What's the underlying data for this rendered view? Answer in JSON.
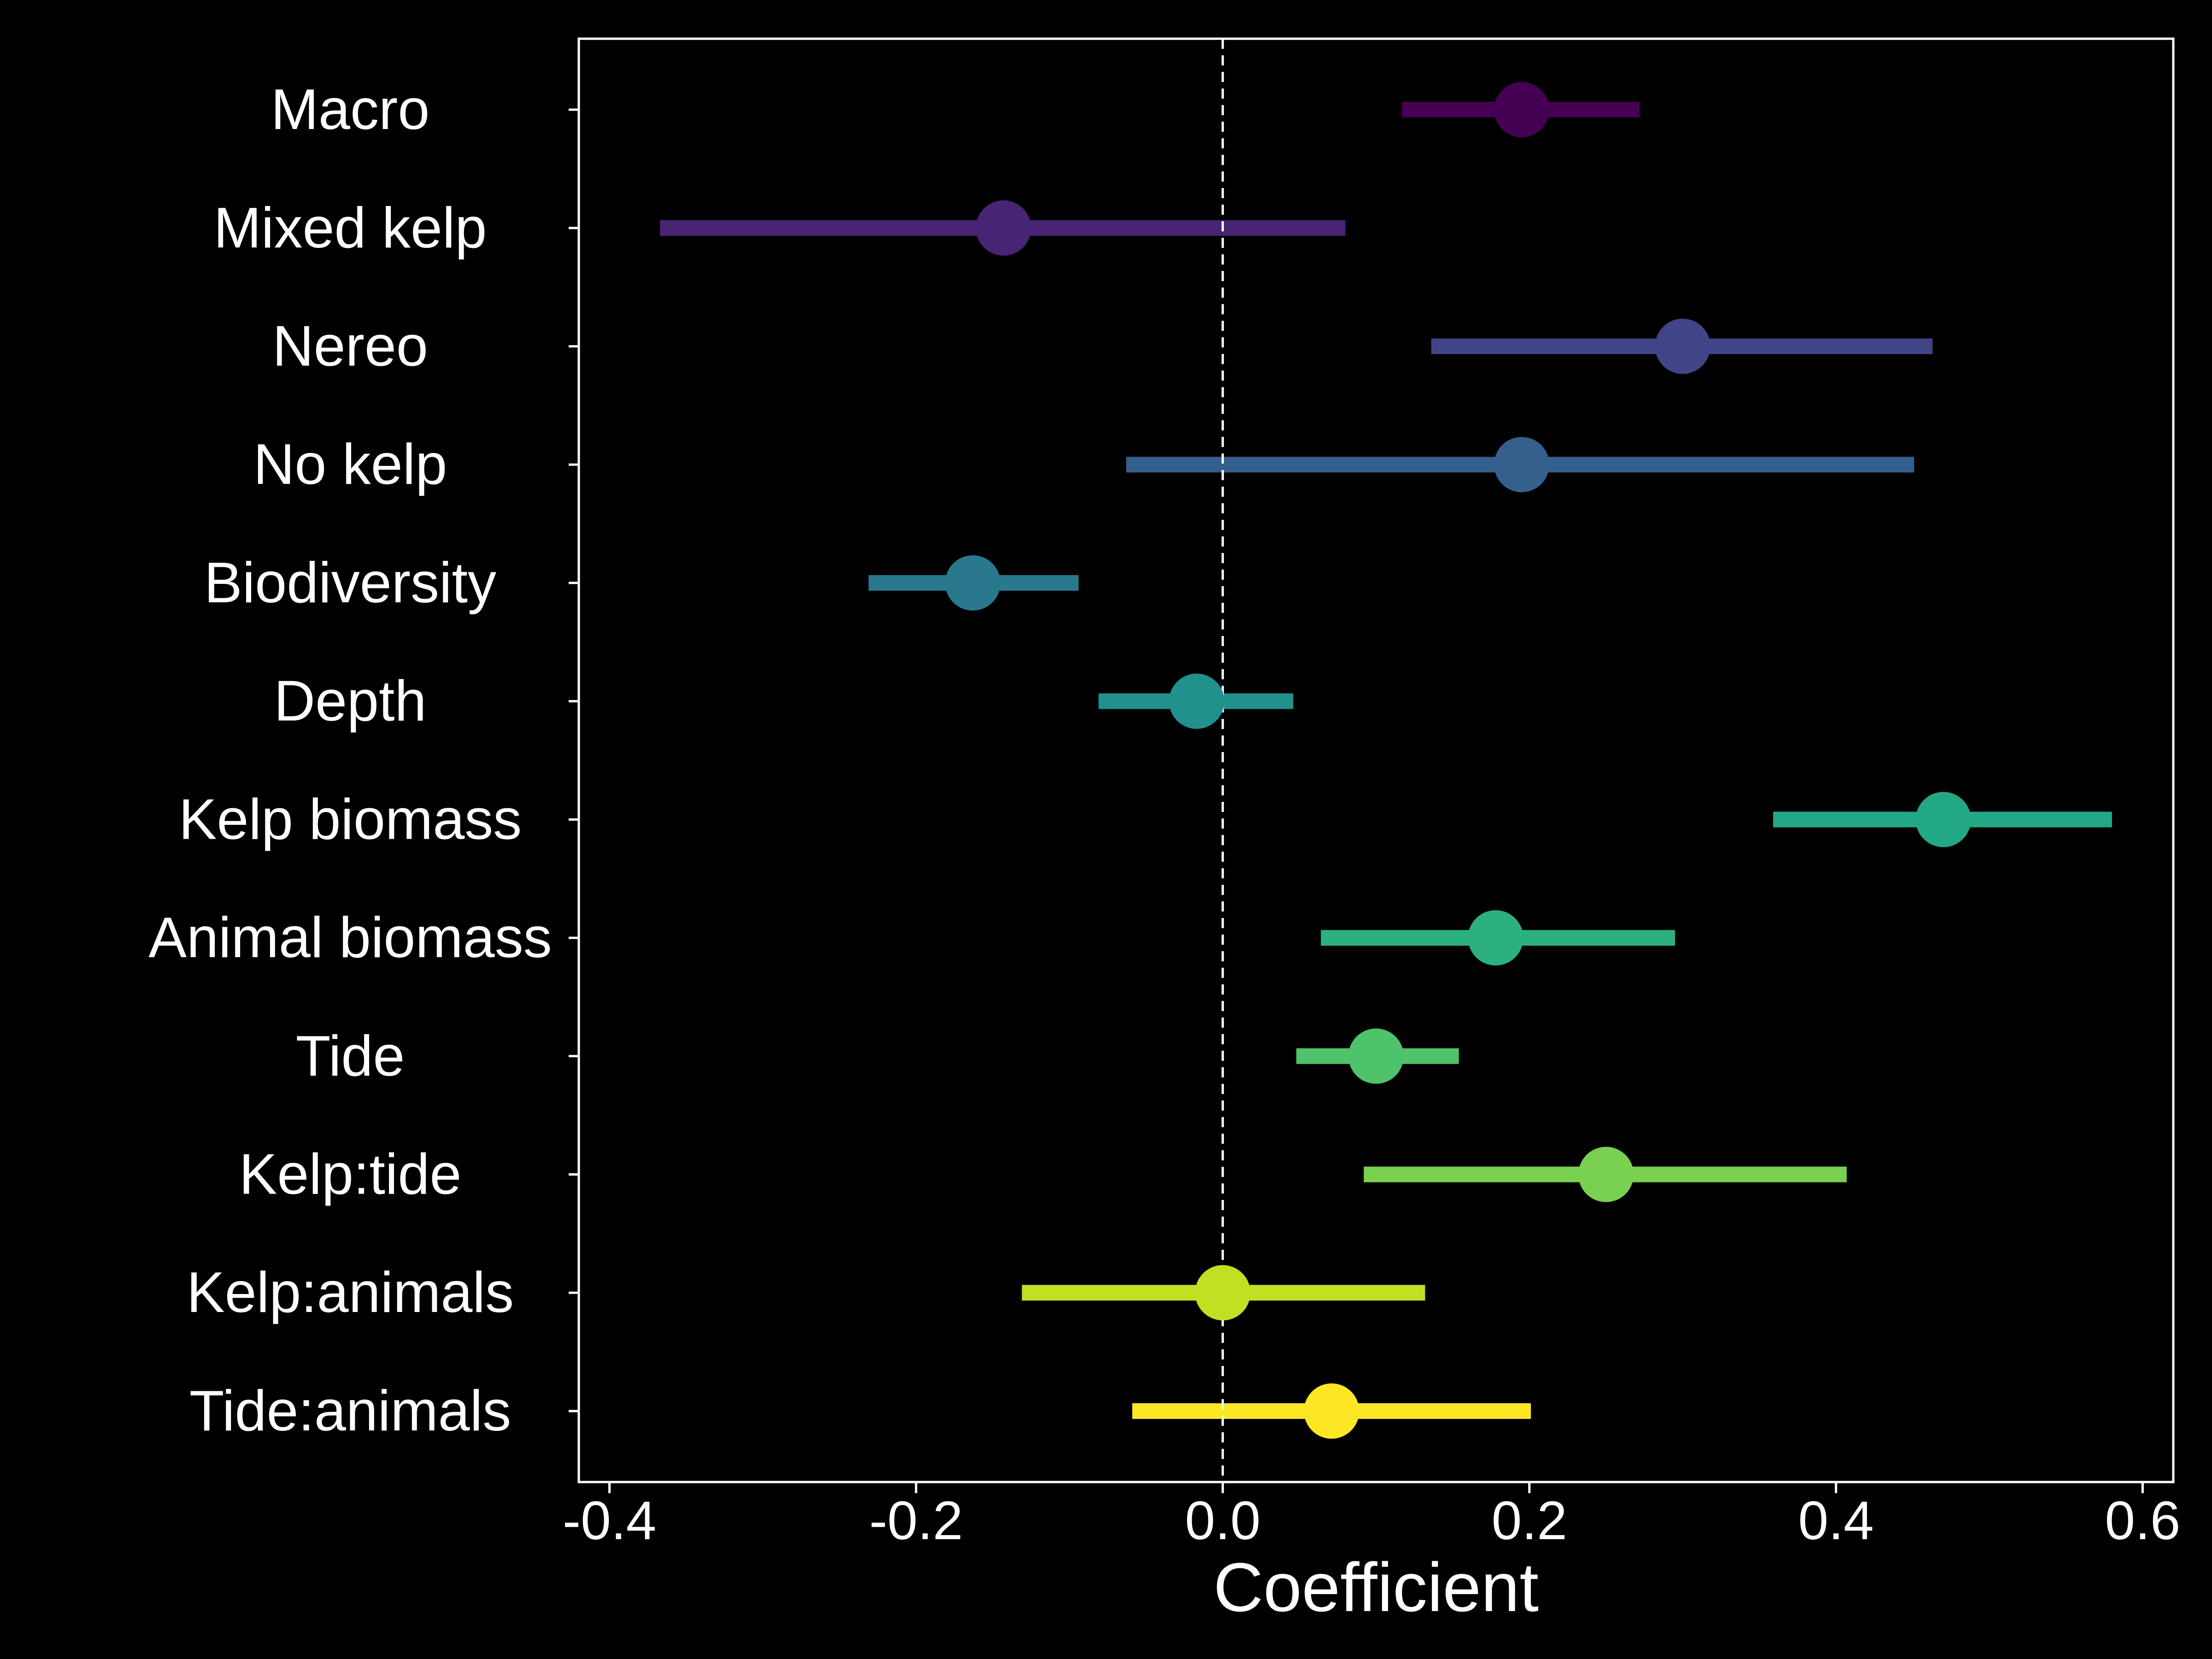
{
  "chart_data": {
    "type": "scatter",
    "subtype": "coefficient-plot",
    "xlabel": "Coefficient",
    "ylabel": "",
    "xlim": [
      -0.42,
      0.62
    ],
    "xticks": [
      -0.4,
      -0.2,
      0.0,
      0.2,
      0.4,
      0.6
    ],
    "xtick_labels": [
      "-0.4",
      "-0.2",
      "0.0",
      "0.2",
      "0.4",
      "0.6"
    ],
    "reference_line": {
      "x": 0.0,
      "style": "dashed",
      "color": "#ffffff"
    },
    "grid": false,
    "legend": "none",
    "background": "#000000",
    "axis_color": "#ffffff",
    "categories": [
      "Macro",
      "Mixed kelp",
      "Nereo",
      "No kelp",
      "Biodiversity",
      "Depth",
      "Kelp biomass",
      "Animal biomass",
      "Tide",
      "Kelp:tide",
      "Kelp:animals",
      "Tide:animals"
    ],
    "estimates": [
      0.195,
      -0.143,
      0.3,
      0.195,
      -0.163,
      -0.017,
      0.47,
      0.178,
      0.1,
      0.25,
      0.0,
      0.071
    ],
    "ci_low": [
      0.117,
      -0.367,
      0.136,
      -0.063,
      -0.231,
      -0.081,
      0.359,
      0.064,
      0.048,
      0.092,
      -0.131,
      -0.059
    ],
    "ci_high": [
      0.272,
      0.08,
      0.463,
      0.451,
      -0.094,
      0.046,
      0.58,
      0.295,
      0.154,
      0.407,
      0.132,
      0.201
    ],
    "colors": [
      "#440154",
      "#482475",
      "#414487",
      "#355f8d",
      "#2a788e",
      "#21918c",
      "#22a884",
      "#2cb17e",
      "#4ec36b",
      "#7ad151",
      "#c2df23",
      "#fde725"
    ]
  }
}
